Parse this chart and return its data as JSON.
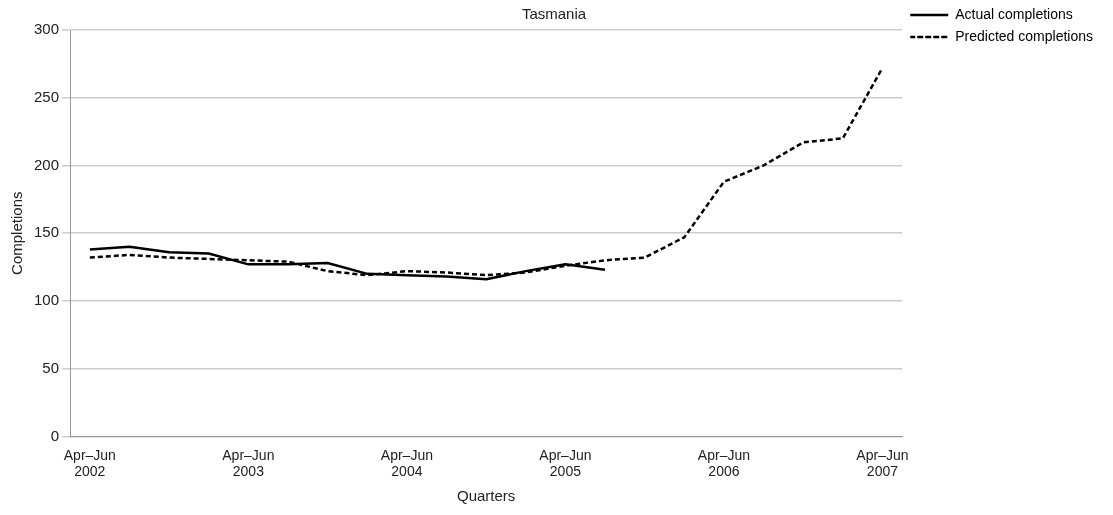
{
  "chart_data": {
    "type": "line",
    "title": "Tasmania",
    "xlabel": "Quarters",
    "ylabel": "Completions",
    "categories": [
      "Apr–Jun 2002",
      null,
      null,
      null,
      "Apr–Jun 2003",
      null,
      null,
      null,
      "Apr–Jun 2004",
      null,
      null,
      null,
      "Apr–Jun 2005",
      null,
      null,
      null,
      "Apr–Jun 2006",
      null,
      null,
      null,
      "Apr–Jun 2007"
    ],
    "series": [
      {
        "name": "Actual completions",
        "color": "#000000",
        "line_style": "solid",
        "values": [
          138,
          140,
          136,
          135,
          127,
          127,
          128,
          120,
          119,
          118,
          116,
          122,
          127,
          123,
          null,
          null,
          null,
          null,
          null,
          null,
          null
        ]
      },
      {
        "name": "Predicted completions",
        "color": "#000000",
        "line_style": "dashed",
        "values": [
          132,
          134,
          132,
          131,
          130,
          129,
          122,
          119,
          122,
          121,
          119,
          121,
          126,
          130,
          132,
          147,
          188,
          200,
          217,
          220,
          272
        ]
      }
    ],
    "ylim": [
      0,
      300
    ],
    "yticks": [
      0,
      50,
      100,
      150,
      200,
      250,
      300
    ],
    "grid": "y",
    "legend": "top right",
    "marker": "none"
  }
}
